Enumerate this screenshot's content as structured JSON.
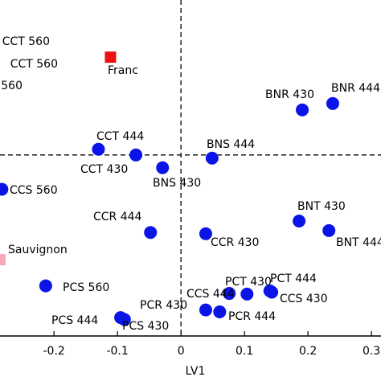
{
  "chart_data": {
    "type": "scatter",
    "xlabel": "LV1",
    "labels": [
      "Franc",
      "BNR 430",
      "BNR 444",
      "CCT 444",
      "CCT 430",
      "BNS 444",
      "BNS 430",
      "CCS 560",
      "CCR 444",
      "CCR 430",
      "BNT 430",
      "BNT 444",
      "Sauvignon",
      "PCS 560",
      "CCS 444",
      "PCT 430",
      "PCT 444",
      "CCS 430",
      "PCR 430",
      "PCR 444",
      "PCS 444",
      "PCS 430"
    ],
    "x": [
      -0.111,
      0.191,
      0.239,
      -0.13,
      -0.071,
      0.049,
      -0.029,
      -0.282,
      -0.048,
      0.039,
      0.186,
      0.233,
      -0.285,
      -0.213,
      0.076,
      0.104,
      0.14,
      0.143,
      0.039,
      0.061,
      -0.095,
      -0.089
    ],
    "y": [
      0.154,
      0.071,
      0.081,
      0.009,
      0.0,
      -0.005,
      -0.02,
      -0.054,
      -0.122,
      -0.124,
      -0.104,
      -0.119,
      -0.165,
      -0.206,
      -0.218,
      -0.219,
      -0.214,
      -0.216,
      -0.244,
      -0.247,
      -0.256,
      -0.259
    ],
    "colors": [
      "#ee1111",
      "#0a14e6",
      "#0a14e6",
      "#0a14e6",
      "#0a14e6",
      "#0a14e6",
      "#0a14e6",
      "#0a14e6",
      "#0a14e6",
      "#0a14e6",
      "#0a14e6",
      "#0a14e6",
      "#f7a8b8",
      "#0a14e6",
      "#0a14e6",
      "#0a14e6",
      "#0a14e6",
      "#0a14e6",
      "#0a14e6",
      "#0a14e6",
      "#0a14e6",
      "#0a14e6"
    ],
    "markers": [
      "square",
      "circle",
      "circle",
      "circle",
      "circle",
      "circle",
      "circle",
      "circle",
      "circle",
      "circle",
      "circle",
      "circle",
      "square",
      "circle",
      "circle",
      "circle",
      "circle",
      "circle",
      "circle",
      "circle",
      "circle",
      "circle"
    ],
    "annotations": [
      "CCT 560",
      "CCT 560",
      "560"
    ],
    "reference_lines": {
      "x": 0,
      "y": 0
    },
    "xlim": [
      -0.285,
      0.315
    ],
    "ylim": [
      -0.285,
      0.244
    ],
    "xticks": [
      -0.2,
      -0.1,
      0,
      0.1,
      0.2,
      0.3
    ]
  }
}
